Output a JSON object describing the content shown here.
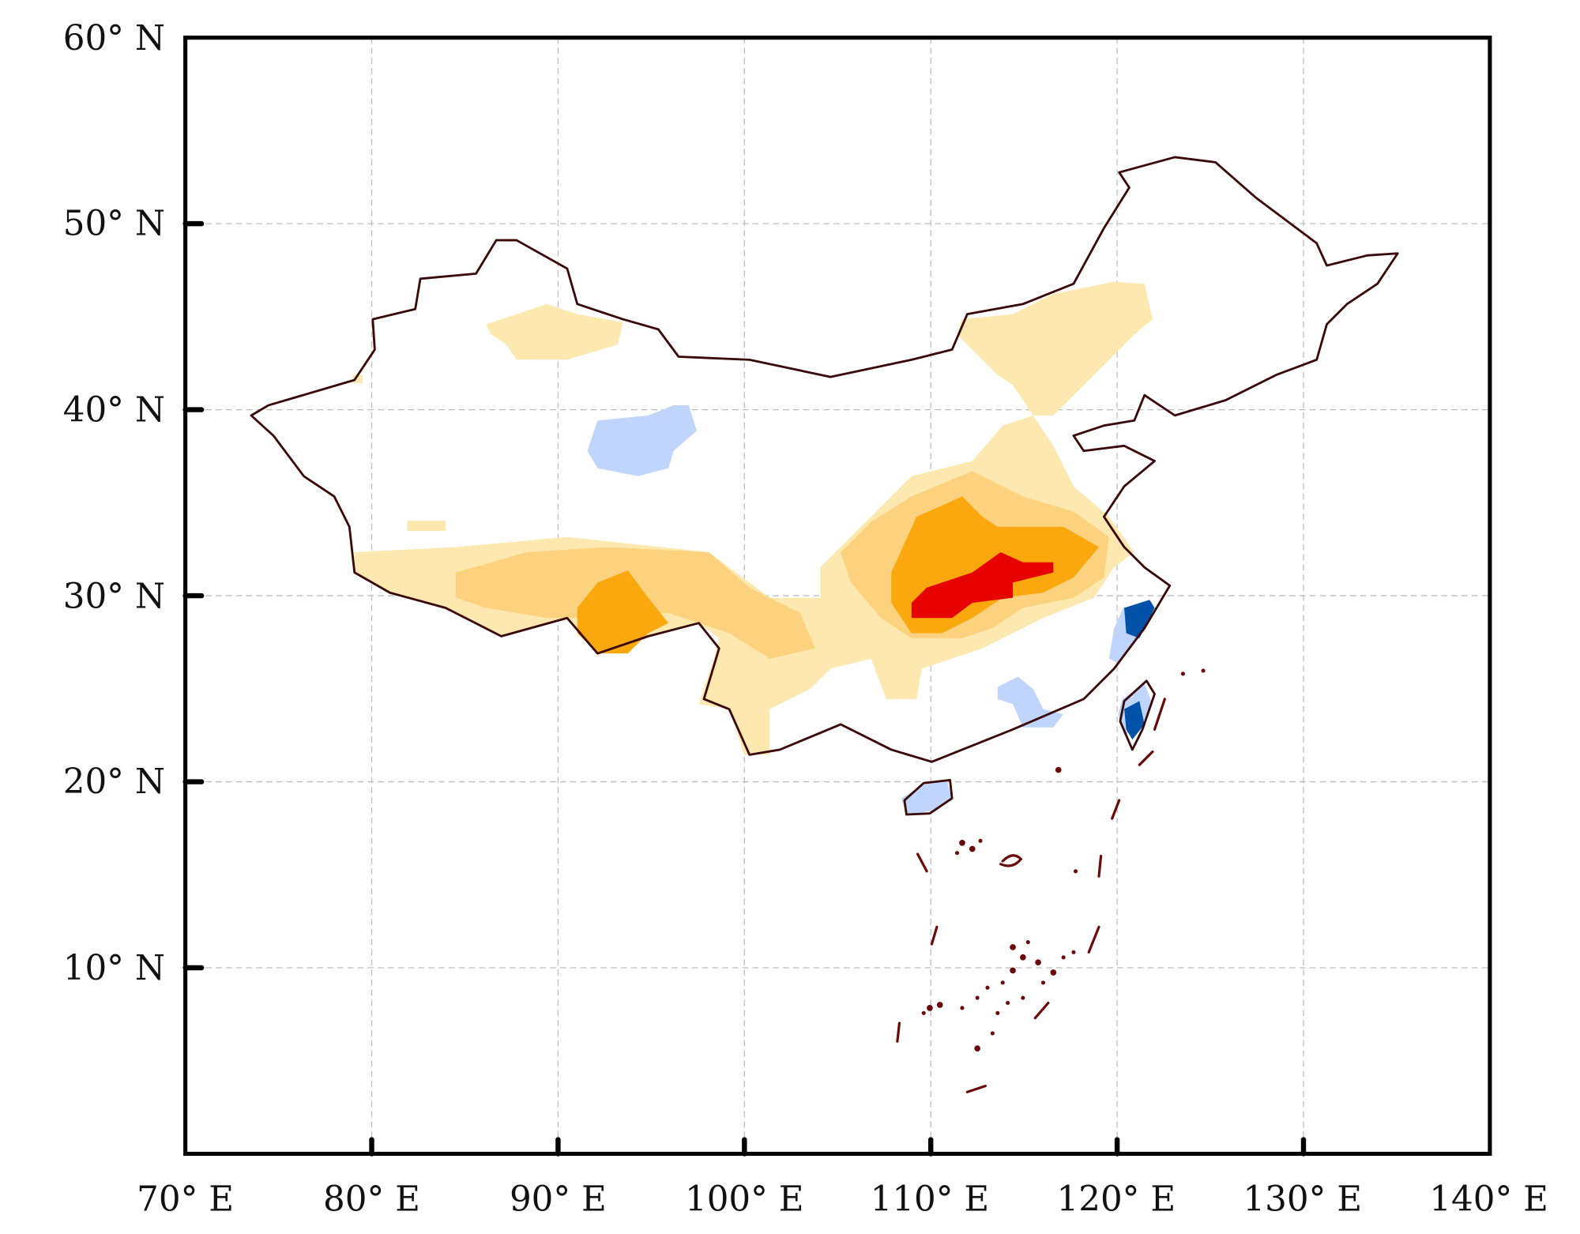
{
  "map_data": {
    "type": "map",
    "region": "China",
    "x_ticks": [
      "70° E",
      "80° E",
      "90° E",
      "100° E",
      "110° E",
      "120° E",
      "130° E",
      "140° E"
    ],
    "y_ticks": [
      "60° N",
      "50° N",
      "40° N",
      "30° N",
      "20° N",
      "10° N"
    ],
    "lon_range": [
      70,
      140
    ],
    "lat_range": [
      0,
      60
    ],
    "colors": {
      "strong_positive": "#e60000",
      "positive_high": "#fba80f",
      "positive_mid": "#fdd27f",
      "positive_low": "#fde8b0",
      "negative_low": "#c0d5fb",
      "negative_high": "#0052a8",
      "border": "#3a0808"
    }
  }
}
